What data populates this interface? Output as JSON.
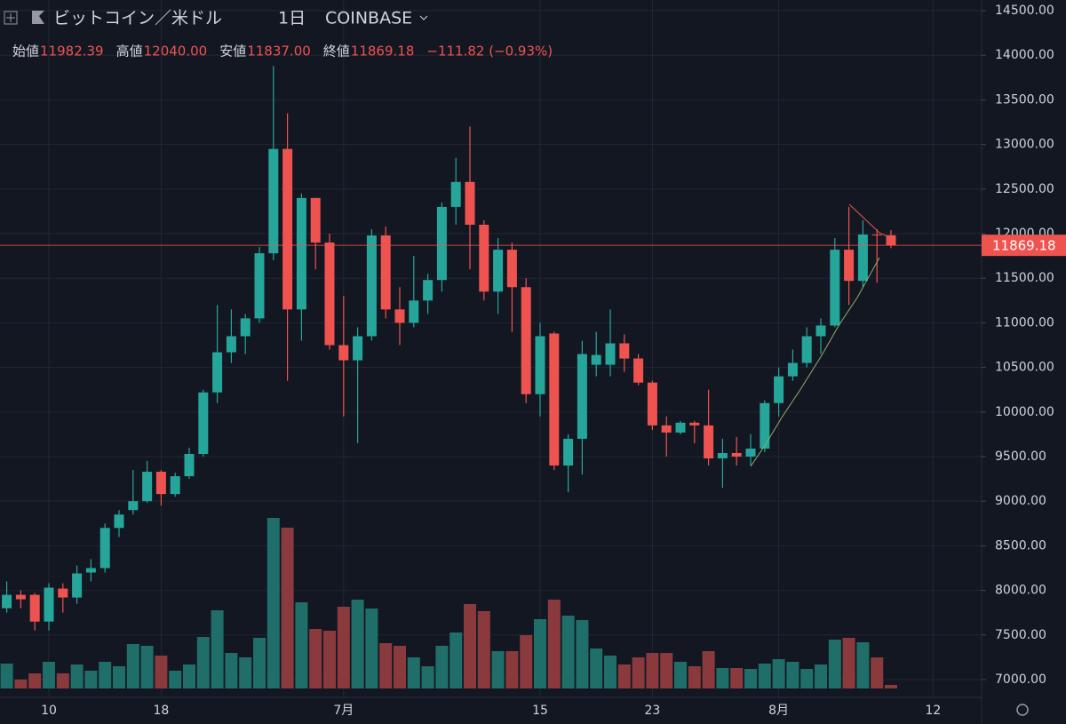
{
  "header": {
    "symbol": "ビットコイン／米ドル",
    "interval": "1日",
    "exchange": "COINBASE",
    "ohlc": [
      {
        "label": "始値",
        "value": "11982.39"
      },
      {
        "label": "高値",
        "value": "12040.00"
      },
      {
        "label": "安値",
        "value": "11837.00"
      },
      {
        "label": "終値",
        "value": "11869.18"
      }
    ],
    "change": "−111.82 (−0.93%)"
  },
  "chart_data": {
    "type": "candlestick",
    "categories": [
      null,
      null,
      null,
      "10",
      null,
      null,
      null,
      null,
      null,
      null,
      null,
      "18",
      null,
      null,
      null,
      null,
      null,
      null,
      null,
      null,
      null,
      null,
      null,
      null,
      "7月",
      null,
      null,
      null,
      null,
      null,
      null,
      null,
      null,
      null,
      null,
      null,
      null,
      null,
      "15",
      null,
      null,
      null,
      null,
      null,
      null,
      null,
      "23",
      null,
      null,
      null,
      null,
      null,
      null,
      null,
      null,
      "8月",
      null,
      null,
      null,
      null,
      null,
      null,
      null,
      null,
      null,
      null,
      "12"
    ],
    "open": [
      7800,
      7950,
      7950,
      7650,
      8020,
      7920,
      8200,
      8250,
      8700,
      8900,
      9000,
      9330,
      9080,
      9280,
      9530,
      10220,
      10670,
      10850,
      11050,
      11780,
      12950,
      11150,
      12400,
      11900,
      10750,
      10580,
      10850,
      11980,
      11150,
      11000,
      11250,
      11480,
      12300,
      12580,
      12100,
      11350,
      11820,
      11400,
      10200,
      10880,
      9400,
      9700,
      10530,
      10530,
      10770,
      10600,
      10330,
      9850,
      9770,
      9880,
      9850,
      9480,
      9540,
      9500,
      9590,
      10100,
      10400,
      10550,
      10850,
      10970,
      11820,
      11470,
      11990,
      11982.39,
      null,
      null,
      null
    ],
    "high": [
      8100,
      8000,
      7970,
      8080,
      8080,
      8280,
      8350,
      8750,
      8900,
      9350,
      9450,
      9350,
      9320,
      9600,
      10250,
      11200,
      11150,
      11100,
      11850,
      13880,
      13350,
      12450,
      12400,
      12000,
      11300,
      10950,
      12050,
      12080,
      11400,
      11750,
      11550,
      12350,
      12850,
      13200,
      12150,
      11950,
      11900,
      11500,
      11000,
      10900,
      9750,
      10800,
      10900,
      11150,
      10870,
      10650,
      10350,
      9950,
      9900,
      9900,
      10250,
      9700,
      9720,
      9750,
      10130,
      10500,
      10700,
      10950,
      11050,
      11950,
      12300,
      12150,
      12050,
      12040,
      null,
      null,
      null
    ],
    "low": [
      7750,
      7800,
      7550,
      7550,
      7750,
      7850,
      8100,
      8200,
      8600,
      8850,
      8980,
      8950,
      9050,
      9250,
      9500,
      10100,
      10550,
      10650,
      11000,
      11700,
      10350,
      10800,
      11600,
      10700,
      9950,
      9650,
      10800,
      11050,
      10750,
      10950,
      11100,
      11350,
      12100,
      11600,
      11250,
      11100,
      10900,
      10100,
      9950,
      9350,
      9100,
      9300,
      10400,
      10400,
      10450,
      10300,
      9800,
      9500,
      9750,
      9650,
      9400,
      9150,
      9400,
      9400,
      9550,
      9950,
      10350,
      10500,
      10650,
      10950,
      11200,
      11400,
      11450,
      11837,
      null,
      null,
      null
    ],
    "close": [
      7950,
      7900,
      7650,
      8030,
      7920,
      8190,
      8250,
      8700,
      8850,
      9000,
      9330,
      9080,
      9280,
      9530,
      10220,
      10670,
      10850,
      11050,
      11780,
      12950,
      11150,
      12400,
      11900,
      10750,
      10580,
      10850,
      11980,
      11150,
      11000,
      11250,
      11480,
      12300,
      12580,
      12100,
      11350,
      11820,
      11400,
      10200,
      10850,
      9400,
      9700,
      10650,
      10640,
      10770,
      10600,
      10330,
      9850,
      9770,
      9880,
      9850,
      9480,
      9540,
      9500,
      9590,
      10100,
      10400,
      10550,
      10850,
      10970,
      11820,
      11470,
      11990,
      11982,
      11869.18,
      null,
      null,
      null
    ],
    "volume": [
      28,
      10,
      17,
      30,
      17,
      27,
      20,
      30,
      25,
      50,
      48,
      37,
      20,
      27,
      58,
      88,
      40,
      35,
      57,
      192,
      181,
      97,
      67,
      65,
      92,
      100,
      90,
      51,
      48,
      35,
      25,
      48,
      63,
      95,
      87,
      42,
      42,
      60,
      78,
      100,
      82,
      77,
      45,
      37,
      27,
      35,
      40,
      40,
      30,
      25,
      42,
      23,
      23,
      22,
      28,
      33,
      30,
      22,
      27,
      55,
      57,
      52,
      35,
      4,
      null,
      null,
      null
    ],
    "up_color": "#26a69a",
    "down_color": "#ef5350",
    "up_volume_color": "#1f6e69",
    "down_volume_color": "#8a3a3d",
    "ylim": [
      6900,
      14620
    ],
    "volume_ylim": [
      0,
      210
    ],
    "yticks": [
      {
        "value": 7000,
        "label": "7000.00"
      },
      {
        "value": 7500,
        "label": "7500.00"
      },
      {
        "value": 8000,
        "label": "8000.00"
      },
      {
        "value": 8500,
        "label": "8500.00"
      },
      {
        "value": 9000,
        "label": "9000.00"
      },
      {
        "value": 9500,
        "label": "9500.00"
      },
      {
        "value": 10000,
        "label": "10000.00"
      },
      {
        "value": 10500,
        "label": "10500.00"
      },
      {
        "value": 11000,
        "label": "11000.00"
      },
      {
        "value": 11500,
        "label": "11500.00"
      },
      {
        "value": 12000,
        "label": "12000.00"
      },
      {
        "value": 12500,
        "label": "12500.00"
      },
      {
        "value": 13000,
        "label": "13000.00"
      },
      {
        "value": 13500,
        "label": "13500.00"
      },
      {
        "value": 14000,
        "label": "14000.00"
      },
      {
        "value": 14500,
        "label": "14500.00"
      }
    ],
    "grid": true,
    "y_axis_side": "right"
  }
}
